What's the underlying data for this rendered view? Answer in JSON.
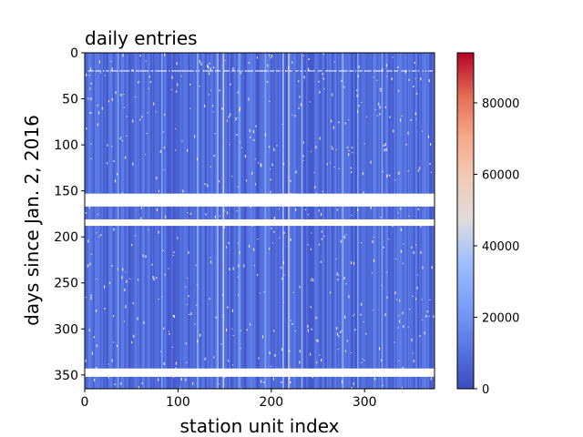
{
  "chart_data": {
    "type": "heatmap",
    "title": "daily entries",
    "xlabel": "station unit index",
    "ylabel": "days since Jan. 2, 2016",
    "x_range": [
      0,
      375
    ],
    "y_range": [
      0,
      365
    ],
    "y_inverted": true,
    "x_ticks": [
      0,
      100,
      200,
      300
    ],
    "x_tick_labels": [
      "0",
      "100",
      "200",
      "300"
    ],
    "y_ticks": [
      0,
      50,
      100,
      150,
      200,
      250,
      300,
      350
    ],
    "y_tick_labels": [
      "0",
      "50",
      "100",
      "150",
      "200",
      "250",
      "300",
      "350"
    ],
    "colorbar": {
      "colormap": "coolwarm",
      "vmin": 0,
      "vmax": 94000,
      "ticks": [
        0,
        20000,
        40000,
        60000,
        80000
      ],
      "tick_labels": [
        "0",
        "20000",
        "40000",
        "60000",
        "80000"
      ]
    },
    "missing_day_ranges": [
      [
        153,
        167
      ],
      [
        181,
        188
      ],
      [
        343,
        352
      ]
    ],
    "sparse_row_day": 19,
    "typical_value_range": [
      2000,
      15000
    ],
    "bright_columns": [
      {
        "unit": 148,
        "value": 50000
      },
      {
        "unit": 218,
        "value": 52000
      }
    ],
    "elevated_columns": [
      {
        "unit": 35,
        "value": 26000
      },
      {
        "unit": 82,
        "value": 24000
      },
      {
        "unit": 120,
        "value": 28000
      },
      {
        "unit": 142,
        "value": 30000
      },
      {
        "unit": 165,
        "value": 25000
      },
      {
        "unit": 193,
        "value": 27000
      },
      {
        "unit": 212,
        "value": 36000
      },
      {
        "unit": 232,
        "value": 29000
      },
      {
        "unit": 276,
        "value": 31000
      },
      {
        "unit": 292,
        "value": 24000
      },
      {
        "unit": 318,
        "value": 27000
      }
    ],
    "colors": {
      "cold": "#3b4cc0",
      "mid": "#dddddd",
      "hot": "#b40426",
      "missing": "#ffffff"
    }
  }
}
